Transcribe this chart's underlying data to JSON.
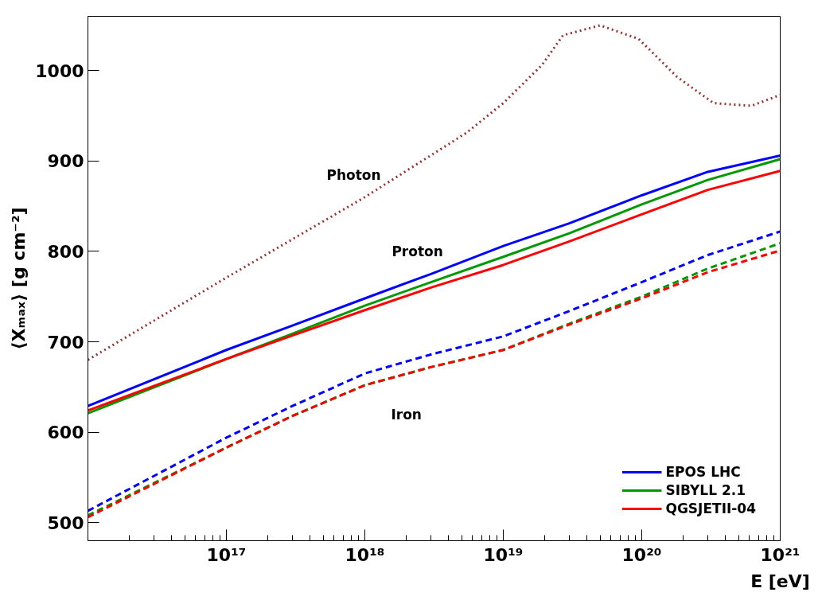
{
  "chart_data": {
    "type": "line",
    "xlabel": "E [eV]",
    "ylabel": "⟨Xₘₐₓ⟩ [g cm⁻²]",
    "log": "x",
    "grid": false,
    "legend": "bottom right",
    "xlim": [
      1e+16,
      1e+21
    ],
    "xticks": [
      {
        "value": 1e+17,
        "label": "10¹⁷"
      },
      {
        "value": 1e+18,
        "label": "10¹⁸"
      },
      {
        "value": 1e+19,
        "label": "10¹⁹"
      },
      {
        "value": 1e+20,
        "label": "10²⁰"
      },
      {
        "value": 1e+21,
        "label": "10²¹"
      }
    ],
    "ylim": [
      480,
      1060
    ],
    "yticks": [
      500,
      600,
      700,
      800,
      900,
      1000
    ],
    "series": [
      {
        "name": "EPOS LHC",
        "color": "#0000ff",
        "line_style": "solid",
        "x": [
          1e+16,
          1e+17,
          3e+17,
          1e+18,
          3e+18,
          1e+19,
          3e+19,
          1e+20,
          3e+20,
          1e+21
        ],
        "values": [
          629,
          691,
          718,
          748,
          775,
          806,
          831,
          862,
          888,
          906
        ]
      },
      {
        "name": "SIBYLL 2.1",
        "color": "#009900",
        "line_style": "solid",
        "x": [
          1e+16,
          1e+17,
          3e+17,
          1e+18,
          3e+18,
          1e+19,
          3e+19,
          1e+20,
          3e+20,
          1e+21
        ],
        "values": [
          621,
          681,
          709,
          740,
          766,
          794,
          820,
          852,
          879,
          902
        ]
      },
      {
        "name": "QGSJETII-04",
        "color": "#ff0000",
        "line_style": "solid",
        "x": [
          1e+16,
          1e+17,
          3e+17,
          1e+18,
          3e+18,
          1e+19,
          3e+19,
          1e+20,
          3e+20,
          1e+21
        ],
        "values": [
          624,
          681,
          707,
          735,
          760,
          785,
          811,
          841,
          868,
          889
        ]
      },
      {
        "color": "#0000ff",
        "line_style": "dashed",
        "x": [
          1e+16,
          1e+17,
          3e+17,
          1e+18,
          3e+18,
          1e+19,
          3e+19,
          1e+20,
          3e+20,
          1e+21
        ],
        "values": [
          513,
          594,
          629,
          665,
          686,
          706,
          734,
          766,
          796,
          822
        ]
      },
      {
        "color": "#009900",
        "line_style": "dashed",
        "x": [
          1e+16,
          1e+17,
          3e+17,
          1e+18,
          3e+18,
          1e+19,
          3e+19,
          1e+20,
          3e+20,
          1e+21
        ],
        "values": [
          508,
          583,
          618,
          652,
          672,
          691,
          720,
          750,
          781,
          809
        ]
      },
      {
        "color": "#ff0000",
        "line_style": "dashed",
        "x": [
          1e+16,
          1e+17,
          3e+17,
          1e+18,
          3e+18,
          1e+19,
          3e+19,
          1e+20,
          3e+20,
          1e+21
        ],
        "values": [
          506,
          583,
          618,
          652,
          672,
          691,
          719,
          748,
          777,
          801
        ]
      },
      {
        "color": "#993333",
        "line_style": "dotted",
        "x": [
          1e+16,
          1e+17,
          1e+18,
          5.4e+18,
          1e+19,
          1.9e+19,
          2.7e+19,
          5e+19,
          9.5e+19,
          1.8e+20,
          3.3e+20,
          6.2e+20,
          1e+21
        ],
        "values": [
          680,
          771,
          860,
          931,
          964,
          1006,
          1039,
          1050,
          1035,
          993,
          964,
          961,
          973
        ]
      }
    ],
    "annotations": [
      "Photon",
      "Proton",
      "Iron"
    ]
  }
}
